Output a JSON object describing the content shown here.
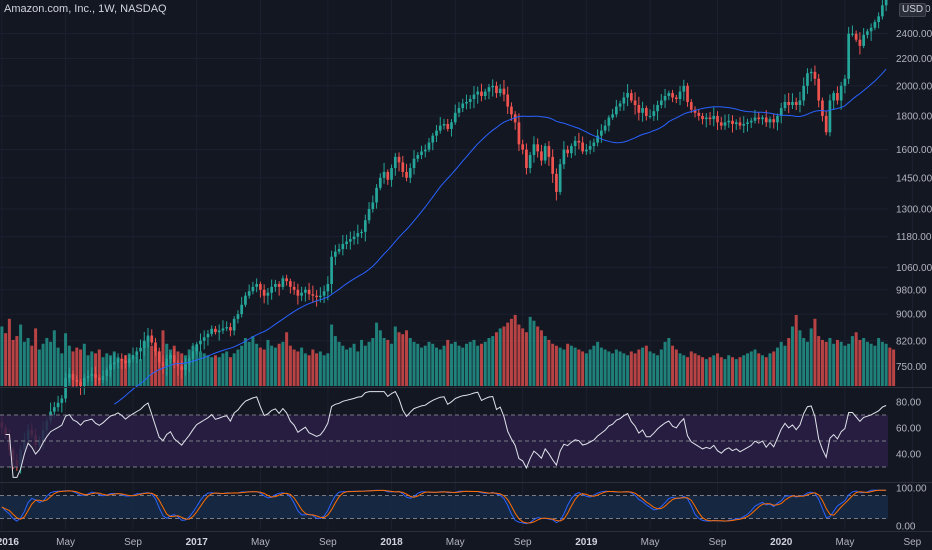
{
  "header": {
    "title": "Amazon.com, Inc., 1W, NASDAQ",
    "currency": "USD"
  },
  "colors": {
    "background": "#131722",
    "grid": "#1c2030",
    "up": "#26a69a",
    "down": "#ef5350",
    "ma": "#2962ff",
    "rsi_line": "#e0e3eb",
    "rsi_band": "#2a1f45",
    "stoch_k": "#2962ff",
    "stoch_d": "#ff6d00",
    "stoch_band": "#172a45",
    "axis_text": "#b2b5be"
  },
  "chart_data": [
    {
      "type": "candlestick",
      "name": "price",
      "title": "Amazon.com, Inc., 1W, NASDAQ",
      "x_ticks": [
        "2016",
        "May",
        "Sep",
        "2017",
        "May",
        "Sep",
        "2018",
        "May",
        "Sep",
        "2019",
        "May",
        "Sep",
        "2020",
        "May",
        "Sep"
      ],
      "x_tick_weeks": [
        0,
        17,
        35,
        52,
        69,
        87,
        104,
        121,
        139,
        156,
        173,
        191,
        208,
        225,
        243
      ],
      "y_ticks": [
        750,
        820,
        900,
        980,
        1060,
        1180,
        1300,
        1450,
        1600,
        1800,
        2000,
        2200,
        2400
      ],
      "y_ticks_labels": [
        "750.00",
        "820.00",
        "900.00",
        "980.00",
        "1060.00",
        "1180.00",
        "1300.00",
        "1450.00",
        "1600.00",
        "1800.00",
        "2000.00",
        "2200.00",
        "2400.00"
      ],
      "top_label_partial": "2",
      "top_label_partial_right": "0",
      "y_scale": "log",
      "ylim": [
        700,
        2700
      ],
      "close": [
        605,
        590,
        560,
        540,
        530,
        560,
        580,
        600,
        590,
        570,
        580,
        600,
        620,
        640,
        650,
        660,
        670,
        720,
        730,
        715,
        710,
        700,
        720,
        725,
        730,
        720,
        715,
        725,
        740,
        755,
        760,
        770,
        765,
        758,
        770,
        780,
        790,
        800,
        820,
        835,
        815,
        790,
        760,
        750,
        770,
        780,
        760,
        750,
        740,
        755,
        770,
        790,
        810,
        820,
        830,
        840,
        855,
        845,
        850,
        856,
        860,
        850,
        885,
        900,
        930,
        960,
        975,
        990,
        1000,
        980,
        960,
        970,
        990,
        1000,
        990,
        1020,
        1010,
        990,
        980,
        960,
        970,
        980,
        965,
        960,
        955,
        960,
        975,
        1000,
        1100,
        1120,
        1130,
        1150,
        1160,
        1170,
        1180,
        1195,
        1200,
        1250,
        1300,
        1330,
        1400,
        1450,
        1480,
        1440,
        1500,
        1560,
        1530,
        1480,
        1450,
        1500,
        1550,
        1570,
        1590,
        1600,
        1640,
        1680,
        1710,
        1740,
        1750,
        1720,
        1760,
        1820,
        1850,
        1880,
        1890,
        1910,
        1940,
        1960,
        1930,
        1960,
        1990,
        2000,
        1950,
        1980,
        1940,
        1860,
        1810,
        1760,
        1630,
        1600,
        1500,
        1570,
        1630,
        1590,
        1540,
        1620,
        1560,
        1470,
        1380,
        1520,
        1600,
        1580,
        1620,
        1650,
        1640,
        1590,
        1600,
        1620,
        1640,
        1680,
        1710,
        1740,
        1790,
        1810,
        1860,
        1880,
        1920,
        1950,
        1900,
        1870,
        1820,
        1850,
        1800,
        1800,
        1830,
        1870,
        1900,
        1930,
        1950,
        1920,
        1910,
        1960,
        2000,
        1890,
        1840,
        1820,
        1800,
        1780,
        1790,
        1780,
        1800,
        1760,
        1740,
        1760,
        1770,
        1750,
        1760,
        1740,
        1750,
        1760,
        1770,
        1790,
        1780,
        1790,
        1760,
        1780,
        1760,
        1800,
        1850,
        1890,
        1870,
        1890,
        1870,
        1900,
        2000,
        2090,
        2100,
        2050,
        1900,
        1800,
        1700,
        1900,
        1950,
        1900,
        2000,
        2050,
        2400,
        2400,
        2350,
        2300,
        2390,
        2420,
        2450,
        2500,
        2550,
        2650,
        2700
      ],
      "ma_start_week": 30,
      "ma_period_weeks": 30
    },
    {
      "type": "bar",
      "name": "volume",
      "note": "relative weekly volume (0-1 scale of panel height)",
      "values_relative": [
        0.62,
        0.55,
        0.7,
        0.48,
        0.52,
        0.64,
        0.46,
        0.5,
        0.42,
        0.6,
        0.38,
        0.44,
        0.5,
        0.46,
        0.58,
        0.4,
        0.34,
        0.55,
        0.42,
        0.36,
        0.4,
        0.38,
        0.44,
        0.32,
        0.36,
        0.34,
        0.38,
        0.3,
        0.34,
        0.32,
        0.36,
        0.3,
        0.28,
        0.32,
        0.34,
        0.3,
        0.32,
        0.28,
        0.46,
        0.5,
        0.42,
        0.4,
        0.36,
        0.58,
        0.44,
        0.38,
        0.42,
        0.36,
        0.34,
        0.32,
        0.38,
        0.42,
        0.4,
        0.36,
        0.34,
        0.32,
        0.3,
        0.32,
        0.3,
        0.34,
        0.36,
        0.3,
        0.34,
        0.38,
        0.42,
        0.5,
        0.46,
        0.52,
        0.44,
        0.4,
        0.38,
        0.48,
        0.42,
        0.4,
        0.44,
        0.46,
        0.56,
        0.42,
        0.38,
        0.36,
        0.4,
        0.34,
        0.32,
        0.38,
        0.34,
        0.36,
        0.32,
        0.34,
        0.64,
        0.52,
        0.46,
        0.42,
        0.38,
        0.4,
        0.44,
        0.36,
        0.48,
        0.42,
        0.46,
        0.5,
        0.66,
        0.58,
        0.5,
        0.48,
        0.44,
        0.62,
        0.56,
        0.54,
        0.58,
        0.5,
        0.46,
        0.44,
        0.4,
        0.42,
        0.46,
        0.44,
        0.4,
        0.38,
        0.42,
        0.48,
        0.44,
        0.46,
        0.42,
        0.4,
        0.44,
        0.46,
        0.48,
        0.42,
        0.44,
        0.46,
        0.5,
        0.52,
        0.56,
        0.6,
        0.62,
        0.66,
        0.7,
        0.74,
        0.64,
        0.6,
        0.56,
        0.72,
        0.68,
        0.62,
        0.58,
        0.52,
        0.48,
        0.44,
        0.42,
        0.4,
        0.38,
        0.44,
        0.42,
        0.4,
        0.38,
        0.36,
        0.34,
        0.38,
        0.42,
        0.46,
        0.4,
        0.38,
        0.36,
        0.34,
        0.38,
        0.36,
        0.34,
        0.32,
        0.36,
        0.34,
        0.38,
        0.4,
        0.42,
        0.36,
        0.34,
        0.32,
        0.38,
        0.46,
        0.5,
        0.42,
        0.38,
        0.34,
        0.32,
        0.3,
        0.36,
        0.34,
        0.32,
        0.3,
        0.28,
        0.3,
        0.32,
        0.34,
        0.3,
        0.28,
        0.32,
        0.3,
        0.28,
        0.3,
        0.32,
        0.34,
        0.36,
        0.38,
        0.34,
        0.32,
        0.3,
        0.34,
        0.36,
        0.4,
        0.46,
        0.42,
        0.5,
        0.62,
        0.74,
        0.58,
        0.5,
        0.46,
        0.6,
        0.7,
        0.52,
        0.48,
        0.46,
        0.5,
        0.44,
        0.48,
        0.46,
        0.42,
        0.44,
        0.52,
        0.56,
        0.48,
        0.5,
        0.46,
        0.44,
        0.42,
        0.5,
        0.46,
        0.44,
        0.4,
        0.38
      ]
    },
    {
      "type": "line",
      "name": "RSI",
      "y_ticks": [
        40,
        60,
        80
      ],
      "y_ticks_labels": [
        "40.00",
        "60.00",
        "80.00"
      ],
      "ylim": [
        20,
        90
      ],
      "band": [
        30,
        70
      ],
      "midline": 50
    },
    {
      "type": "line",
      "name": "Stochastic",
      "y_ticks": [
        0,
        100
      ],
      "y_ticks_labels": [
        "0.00",
        "100.00"
      ],
      "ylim": [
        -10,
        110
      ],
      "band": [
        20,
        80
      ]
    }
  ]
}
